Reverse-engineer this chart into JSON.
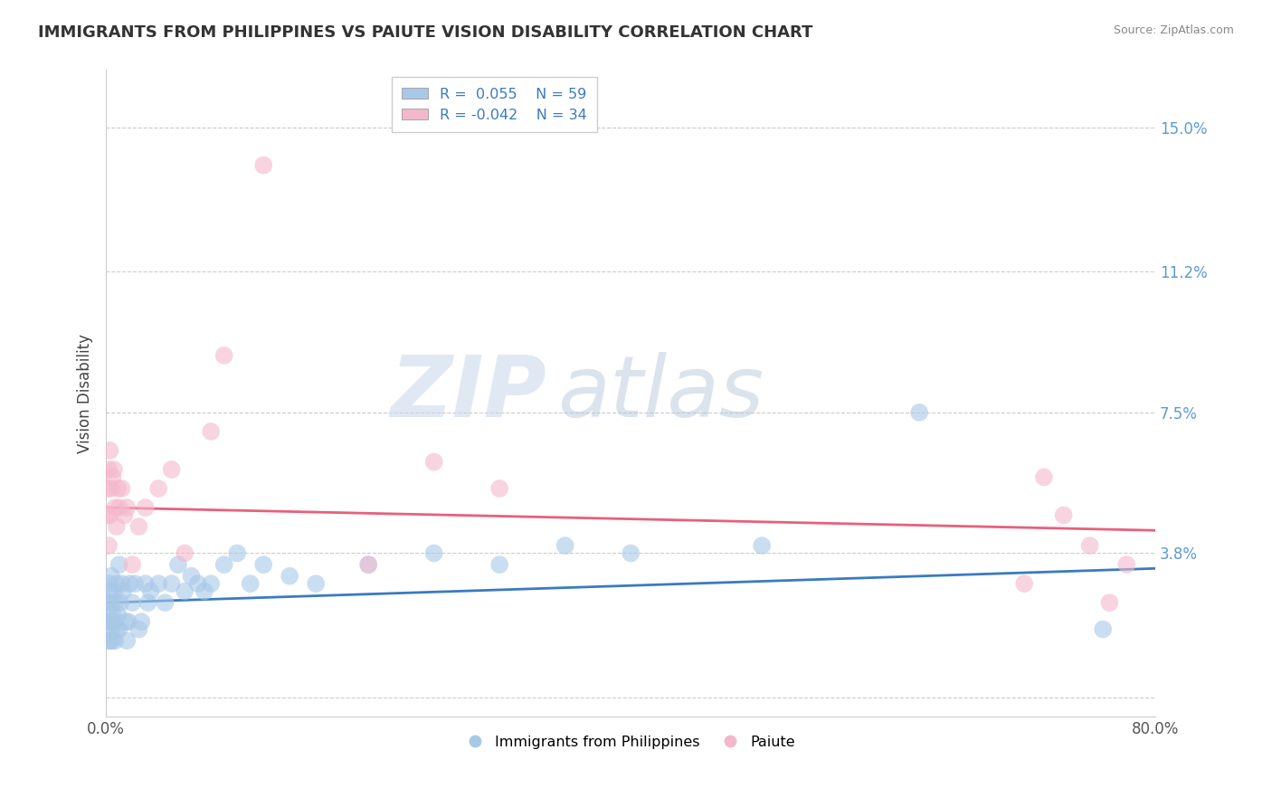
{
  "title": "IMMIGRANTS FROM PHILIPPINES VS PAIUTE VISION DISABILITY CORRELATION CHART",
  "source": "Source: ZipAtlas.com",
  "ylabel": "Vision Disability",
  "xlim": [
    0.0,
    0.8
  ],
  "ylim": [
    -0.005,
    0.165
  ],
  "yticks": [
    0.0,
    0.038,
    0.075,
    0.112,
    0.15
  ],
  "ytick_labels": [
    "",
    "3.8%",
    "7.5%",
    "11.2%",
    "15.0%"
  ],
  "xticks": [
    0.0,
    0.8
  ],
  "xtick_labels": [
    "0.0%",
    "80.0%"
  ],
  "color_blue": "#a8c8e8",
  "color_pink": "#f4b8cc",
  "color_line_blue": "#3a7bbf",
  "color_line_pink": "#e8607a",
  "blue_trend": [
    0.025,
    0.034
  ],
  "pink_trend": [
    0.05,
    0.044
  ],
  "blue_scatter_x": [
    0.001,
    0.001,
    0.002,
    0.002,
    0.002,
    0.003,
    0.003,
    0.003,
    0.004,
    0.004,
    0.004,
    0.005,
    0.005,
    0.006,
    0.006,
    0.007,
    0.007,
    0.008,
    0.008,
    0.009,
    0.01,
    0.01,
    0.011,
    0.012,
    0.013,
    0.015,
    0.016,
    0.017,
    0.018,
    0.02,
    0.022,
    0.025,
    0.027,
    0.03,
    0.032,
    0.034,
    0.04,
    0.045,
    0.05,
    0.055,
    0.06,
    0.065,
    0.07,
    0.075,
    0.08,
    0.09,
    0.1,
    0.11,
    0.12,
    0.14,
    0.16,
    0.2,
    0.25,
    0.3,
    0.35,
    0.4,
    0.5,
    0.62,
    0.76
  ],
  "blue_scatter_y": [
    0.025,
    0.02,
    0.03,
    0.022,
    0.015,
    0.028,
    0.02,
    0.015,
    0.025,
    0.018,
    0.032,
    0.022,
    0.015,
    0.028,
    0.02,
    0.025,
    0.015,
    0.018,
    0.03,
    0.022,
    0.035,
    0.018,
    0.025,
    0.03,
    0.028,
    0.02,
    0.015,
    0.02,
    0.03,
    0.025,
    0.03,
    0.018,
    0.02,
    0.03,
    0.025,
    0.028,
    0.03,
    0.025,
    0.03,
    0.035,
    0.028,
    0.032,
    0.03,
    0.028,
    0.03,
    0.035,
    0.038,
    0.03,
    0.035,
    0.032,
    0.03,
    0.035,
    0.038,
    0.035,
    0.04,
    0.038,
    0.04,
    0.075,
    0.018
  ],
  "pink_scatter_x": [
    0.001,
    0.001,
    0.002,
    0.002,
    0.003,
    0.003,
    0.004,
    0.005,
    0.006,
    0.007,
    0.008,
    0.009,
    0.01,
    0.012,
    0.014,
    0.016,
    0.02,
    0.025,
    0.03,
    0.04,
    0.05,
    0.06,
    0.08,
    0.09,
    0.12,
    0.2,
    0.25,
    0.3,
    0.7,
    0.715,
    0.73,
    0.75,
    0.765,
    0.778
  ],
  "pink_scatter_y": [
    0.055,
    0.048,
    0.06,
    0.04,
    0.065,
    0.048,
    0.055,
    0.058,
    0.06,
    0.05,
    0.045,
    0.055,
    0.05,
    0.055,
    0.048,
    0.05,
    0.035,
    0.045,
    0.05,
    0.055,
    0.06,
    0.038,
    0.07,
    0.09,
    0.14,
    0.035,
    0.062,
    0.055,
    0.03,
    0.058,
    0.048,
    0.04,
    0.025,
    0.035
  ]
}
